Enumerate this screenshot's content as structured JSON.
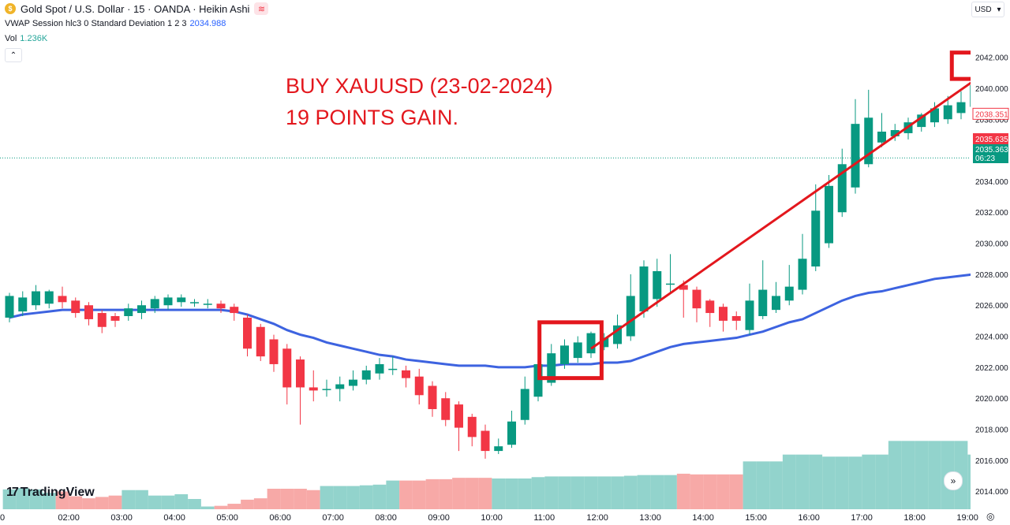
{
  "header": {
    "symbol_line": "Gold Spot / U.S. Dollar · 15 · OANDA · Heikin Ashi",
    "logo_glyph": "$",
    "wave_glyph": "≋",
    "indicator_label": "VWAP Session hlc3 0 Standard Deviation 1 2 3",
    "indicator_value": "2034.988",
    "volume_label": "Vol",
    "volume_value": "1.236K",
    "collapse_glyph": "⌃"
  },
  "currency": {
    "label": "USD",
    "caret": "▾"
  },
  "annotation": {
    "line1": "BUY XAUUSD (23-02-2024)",
    "line2": "19 POINTS GAIN."
  },
  "branding": {
    "name": "TradingView",
    "mark": "17"
  },
  "controls": {
    "jump_glyph": "»",
    "settings_glyph": "◎"
  },
  "colors": {
    "up": "#089981",
    "down": "#f23645",
    "vol_up": "#92d3cc",
    "vol_down": "#f7a9a7",
    "vwap": "#3d63e0",
    "annotation": "#e3171d",
    "price_red": "#f23645",
    "price_green": "#089981"
  },
  "chart_data": {
    "type": "candlestick",
    "style": "Heikin Ashi",
    "ylim": [
      2013.4,
      2043.2
    ],
    "y_ticks": [
      "2014.000",
      "2016.000",
      "2018.000",
      "2020.000",
      "2022.000",
      "2024.000",
      "2026.000",
      "2028.000",
      "2030.000",
      "2032.000",
      "2034.000",
      "2036.000",
      "2038.000",
      "2040.000",
      "2042.000"
    ],
    "x_ticks": [
      {
        "label": "0",
        "pos": 1.5
      },
      {
        "label": "02:00",
        "pos": 4.5
      },
      {
        "label": "03:00",
        "pos": 8.5
      },
      {
        "label": "04:00",
        "pos": 12.5
      },
      {
        "label": "05:00",
        "pos": 16.5
      },
      {
        "label": "06:00",
        "pos": 20.5
      },
      {
        "label": "07:00",
        "pos": 24.5
      },
      {
        "label": "08:00",
        "pos": 28.5
      },
      {
        "label": "09:00",
        "pos": 32.5
      },
      {
        "label": "10:00",
        "pos": 36.5
      },
      {
        "label": "11:00",
        "pos": 40.5
      },
      {
        "label": "12:00",
        "pos": 44.5
      },
      {
        "label": "13:00",
        "pos": 48.5
      },
      {
        "label": "14:00",
        "pos": 52.5
      },
      {
        "label": "15:00",
        "pos": 56.5
      },
      {
        "label": "16:00",
        "pos": 60.5
      },
      {
        "label": "17:00",
        "pos": 64.5
      },
      {
        "label": "18:00",
        "pos": 68.5
      },
      {
        "label": "19:00",
        "pos": 72.5
      }
    ],
    "candles": [
      [
        2025.2,
        2026.6,
        2024.9,
        2026.8
      ],
      [
        2025.6,
        2026.5,
        2025.3,
        2026.9
      ],
      [
        2026.0,
        2026.9,
        2025.7,
        2027.3
      ],
      [
        2026.1,
        2026.9,
        2025.8,
        2027.0
      ],
      [
        2026.6,
        2026.2,
        2025.8,
        2027.2
      ],
      [
        2026.3,
        2025.5,
        2025.2,
        2026.5
      ],
      [
        2026.0,
        2025.1,
        2024.7,
        2026.2
      ],
      [
        2025.5,
        2024.6,
        2024.2,
        2025.7
      ],
      [
        2025.3,
        2025.0,
        2024.6,
        2025.5
      ],
      [
        2025.3,
        2025.8,
        2025.0,
        2026.1
      ],
      [
        2025.5,
        2026.0,
        2025.1,
        2026.3
      ],
      [
        2025.8,
        2026.4,
        2025.5,
        2026.6
      ],
      [
        2026.0,
        2026.5,
        2025.7,
        2026.7
      ],
      [
        2026.2,
        2026.5,
        2025.9,
        2026.7
      ],
      [
        2026.2,
        2026.2,
        2025.9,
        2026.4
      ],
      [
        2026.1,
        2026.1,
        2025.8,
        2026.4
      ],
      [
        2026.1,
        2025.8,
        2025.5,
        2026.3
      ],
      [
        2025.9,
        2025.5,
        2025.0,
        2026.1
      ],
      [
        2025.2,
        2023.2,
        2022.7,
        2025.4
      ],
      [
        2024.6,
        2022.7,
        2022.4,
        2024.8
      ],
      [
        2023.8,
        2022.2,
        2021.7,
        2024.1
      ],
      [
        2023.2,
        2020.7,
        2019.6,
        2023.5
      ],
      [
        2022.5,
        2020.7,
        2018.3,
        2022.7
      ],
      [
        2020.7,
        2020.5,
        2019.8,
        2021.8
      ],
      [
        2020.6,
        2020.6,
        2020.1,
        2021.2
      ],
      [
        2020.6,
        2020.9,
        2019.8,
        2021.4
      ],
      [
        2020.8,
        2021.2,
        2020.5,
        2021.8
      ],
      [
        2021.2,
        2021.8,
        2020.9,
        2022.1
      ],
      [
        2021.6,
        2022.2,
        2021.2,
        2022.6
      ],
      [
        2021.9,
        2021.9,
        2021.5,
        2022.7
      ],
      [
        2021.8,
        2021.3,
        2020.7,
        2022.1
      ],
      [
        2021.4,
        2020.2,
        2019.6,
        2021.9
      ],
      [
        2020.8,
        2019.3,
        2018.8,
        2021.1
      ],
      [
        2020.0,
        2018.6,
        2018.2,
        2020.4
      ],
      [
        2019.6,
        2018.1,
        2016.6,
        2019.8
      ],
      [
        2018.8,
        2017.5,
        2016.9,
        2019.0
      ],
      [
        2017.9,
        2016.6,
        2016.1,
        2018.3
      ],
      [
        2016.6,
        2016.9,
        2016.4,
        2017.4
      ],
      [
        2017.0,
        2018.5,
        2016.8,
        2019.2
      ],
      [
        2018.6,
        2020.6,
        2018.3,
        2021.4
      ],
      [
        2020.1,
        2022.2,
        2019.8,
        2023.4
      ],
      [
        2021.0,
        2022.9,
        2020.8,
        2023.5
      ],
      [
        2022.2,
        2023.4,
        2021.9,
        2023.8
      ],
      [
        2022.6,
        2023.6,
        2022.3,
        2024.0
      ],
      [
        2022.9,
        2024.2,
        2022.6,
        2024.3
      ],
      [
        2023.3,
        2023.9,
        2023.1,
        2024.2
      ],
      [
        2023.5,
        2024.7,
        2023.2,
        2025.4
      ],
      [
        2024.0,
        2026.6,
        2023.7,
        2028.0
      ],
      [
        2025.6,
        2028.5,
        2025.2,
        2028.9
      ],
      [
        2026.4,
        2028.2,
        2025.9,
        2029.0
      ],
      [
        2027.4,
        2027.4,
        2026.8,
        2029.3
      ],
      [
        2027.3,
        2027.0,
        2025.2,
        2027.6
      ],
      [
        2027.0,
        2025.8,
        2024.9,
        2027.2
      ],
      [
        2026.3,
        2025.5,
        2024.6,
        2026.4
      ],
      [
        2025.9,
        2025.0,
        2024.3,
        2026.1
      ],
      [
        2025.3,
        2025.0,
        2024.4,
        2025.6
      ],
      [
        2024.4,
        2026.3,
        2024.1,
        2027.4
      ],
      [
        2025.3,
        2027.0,
        2025.1,
        2028.9
      ],
      [
        2025.7,
        2026.6,
        2025.5,
        2027.5
      ],
      [
        2026.3,
        2027.2,
        2026.0,
        2028.6
      ],
      [
        2027.0,
        2029.0,
        2026.7,
        2030.6
      ],
      [
        2028.5,
        2032.1,
        2028.2,
        2033.8
      ],
      [
        2030.0,
        2033.7,
        2029.7,
        2034.4
      ],
      [
        2032.0,
        2035.1,
        2031.7,
        2036.1
      ],
      [
        2033.6,
        2037.7,
        2033.2,
        2039.3
      ],
      [
        2035.1,
        2038.1,
        2034.9,
        2039.9
      ],
      [
        2036.5,
        2037.2,
        2036.2,
        2038.4
      ],
      [
        2036.9,
        2037.3,
        2036.6,
        2037.7
      ],
      [
        2037.1,
        2037.8,
        2036.7,
        2038.1
      ],
      [
        2037.5,
        2038.3,
        2037.2,
        2038.4
      ],
      [
        2037.8,
        2038.7,
        2037.5,
        2039.1
      ],
      [
        2038.0,
        2038.9,
        2037.7,
        2039.5
      ],
      [
        2038.4,
        2039.1,
        2038.0,
        2039.8
      ],
      [
        2038.8,
        2040.2,
        2038.5,
        2040.3
      ],
      [
        2039.0,
        2040.0,
        2038.7,
        2041.4
      ],
      [
        2039.8,
        2039.4,
        2038.9,
        2040.3
      ],
      [
        2039.5,
        2038.4,
        2038.1,
        2039.8
      ]
    ],
    "vwap": [
      2025.2,
      2025.4,
      2025.5,
      2025.6,
      2025.7,
      2025.7,
      2025.7,
      2025.7,
      2025.7,
      2025.7,
      2025.7,
      2025.7,
      2025.7,
      2025.7,
      2025.7,
      2025.7,
      2025.7,
      2025.6,
      2025.4,
      2025.1,
      2024.8,
      2024.4,
      2024.1,
      2023.9,
      2023.6,
      2023.4,
      2023.2,
      2023.0,
      2022.8,
      2022.7,
      2022.5,
      2022.4,
      2022.3,
      2022.2,
      2022.1,
      2022.1,
      2022.1,
      2022.0,
      2022.0,
      2022.0,
      2022.1,
      2022.1,
      2022.2,
      2022.2,
      2022.2,
      2022.3,
      2022.3,
      2022.4,
      2022.7,
      2023.0,
      2023.3,
      2023.5,
      2023.6,
      2023.7,
      2023.8,
      2023.9,
      2024.1,
      2024.3,
      2024.6,
      2024.9,
      2025.1,
      2025.5,
      2025.9,
      2026.3,
      2026.6,
      2026.8,
      2026.9,
      2027.1,
      2027.3,
      2027.5,
      2027.7,
      2027.8,
      2027.9,
      2028.0,
      2028.1,
      2028.2,
      2028.3
    ],
    "volumes_ylim": [
      0,
      1500
    ],
    "volumes": [
      290,
      310,
      290,
      240,
      260,
      190,
      160,
      180,
      200,
      280,
      280,
      200,
      200,
      220,
      150,
      40,
      50,
      80,
      140,
      160,
      300,
      300,
      300,
      280,
      340,
      340,
      340,
      350,
      360,
      420,
      420,
      420,
      440,
      440,
      460,
      460,
      460,
      450,
      450,
      450,
      470,
      480,
      480,
      480,
      480,
      480,
      480,
      490,
      500,
      500,
      500,
      520,
      510,
      510,
      510,
      510,
      700,
      700,
      700,
      800,
      800,
      800,
      770,
      770,
      770,
      800,
      800,
      1000,
      1000,
      1000,
      1000,
      1000,
      1000,
      800,
      800,
      800,
      800
    ]
  },
  "price_labels": {
    "ticks_right_hidden_under": "2038.000",
    "last_price": "2038.351",
    "bid": "2035.635",
    "ask": "2035.363",
    "countdown": "06:23",
    "hline_value": 2035.5
  },
  "arrow": {
    "from_index": 44,
    "from_price": 2023.2,
    "to_index": 74,
    "to_price": 2041.1
  },
  "boxes": [
    {
      "x0_index": 40.1,
      "x1_index": 44.8,
      "y_top": 2024.9,
      "y_bottom": 2021.3
    },
    {
      "x0_index": 71.3,
      "x1_index": 76.3,
      "y_top": 2042.3,
      "y_bottom": 2040.6
    }
  ]
}
